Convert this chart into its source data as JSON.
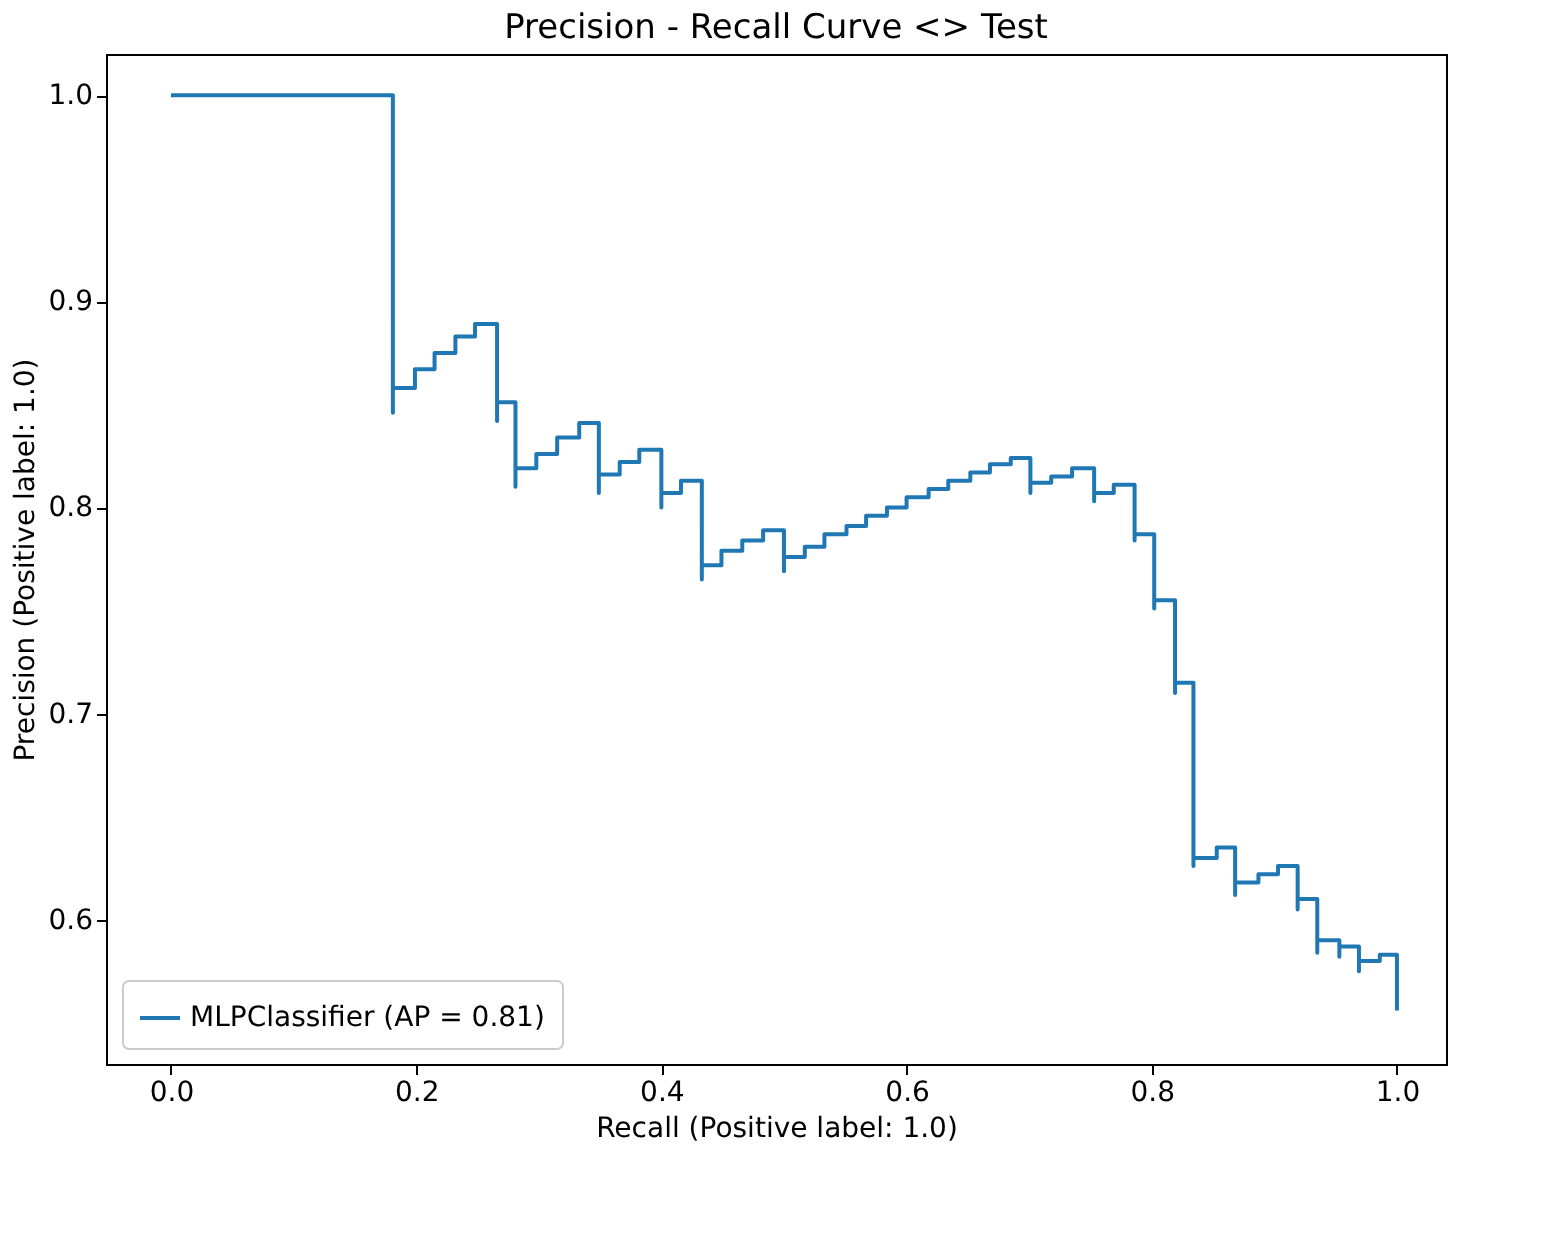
{
  "chart_data": {
    "type": "step",
    "title": "Precision - Recall Curve <> Test",
    "xlabel": "Recall (Positive label: 1.0)",
    "ylabel": "Precision (Positive label: 1.0)",
    "xlim": [
      -0.053,
      1.04
    ],
    "ylim": [
      0.53,
      1.02
    ],
    "xticks": [
      {
        "value": 0,
        "label": "0.0"
      },
      0.2,
      0.4,
      0.6,
      0.8,
      {
        "value": 1,
        "label": "1.0"
      }
    ],
    "yticks": [
      0.6,
      0.7,
      0.8,
      0.9,
      {
        "value": 1,
        "label": "1.0"
      }
    ],
    "grid": false,
    "legend": "bottom left",
    "line_style": "solid",
    "marker": "none",
    "series": [
      {
        "name": "MLPClassifier (AP = 0.81)",
        "color": "#1f77b4",
        "x": [
          0,
          0.181,
          0.181,
          0.199,
          0.215,
          0.232,
          0.248,
          0.266,
          0.266,
          0.281,
          0.281,
          0.298,
          0.315,
          0.333,
          0.349,
          0.349,
          0.366,
          0.382,
          0.4,
          0.4,
          0.416,
          0.433,
          0.433,
          0.449,
          0.466,
          0.483,
          0.5,
          0.5,
          0.517,
          0.533,
          0.551,
          0.567,
          0.584,
          0.6,
          0.618,
          0.634,
          0.652,
          0.668,
          0.685,
          0.701,
          0.701,
          0.718,
          0.735,
          0.753,
          0.753,
          0.769,
          0.786,
          0.786,
          0.802,
          0.802,
          0.819,
          0.819,
          0.834,
          0.834,
          0.853,
          0.868,
          0.868,
          0.887,
          0.903,
          0.919,
          0.919,
          0.935,
          0.935,
          0.953,
          0.953,
          0.969,
          0.969,
          0.986,
          1.0
        ],
        "values": [
          1.0,
          0.846,
          0.858,
          0.867,
          0.875,
          0.883,
          0.889,
          0.842,
          0.851,
          0.81,
          0.819,
          0.826,
          0.834,
          0.841,
          0.807,
          0.816,
          0.822,
          0.828,
          0.8,
          0.807,
          0.813,
          0.765,
          0.772,
          0.779,
          0.784,
          0.789,
          0.769,
          0.776,
          0.781,
          0.787,
          0.791,
          0.796,
          0.8,
          0.805,
          0.809,
          0.813,
          0.817,
          0.821,
          0.824,
          0.807,
          0.812,
          0.815,
          0.819,
          0.803,
          0.807,
          0.811,
          0.784,
          0.787,
          0.751,
          0.755,
          0.71,
          0.715,
          0.626,
          0.63,
          0.635,
          0.612,
          0.618,
          0.622,
          0.626,
          0.605,
          0.61,
          0.584,
          0.59,
          0.582,
          0.587,
          0.575,
          0.58,
          0.583,
          0.556
        ]
      }
    ]
  }
}
